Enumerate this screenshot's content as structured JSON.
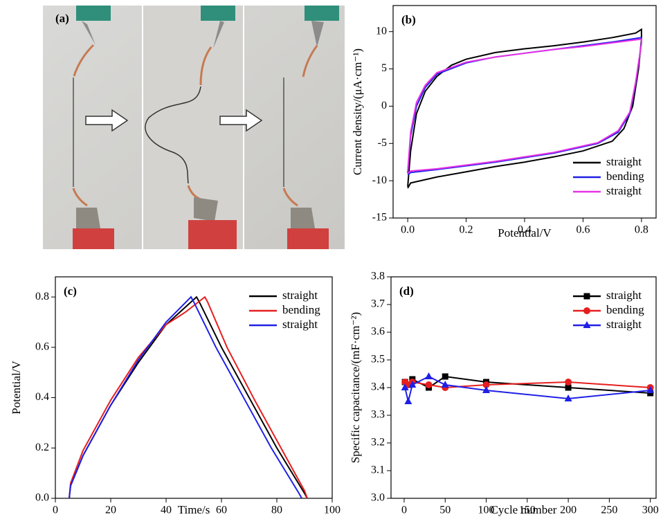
{
  "photo": {
    "label": "(a)"
  },
  "chart_data": [
    {
      "type": "line",
      "panel": "(b)",
      "xlabel": "Potential/V",
      "ylabel": "Current density/(μA·cm⁻¹)",
      "xlim": [
        -0.05,
        0.85
      ],
      "ylim": [
        -15,
        13.5
      ],
      "xticks": [
        {
          "value": 0,
          "label": "0.0"
        },
        0.2,
        0.4,
        0.6,
        0.8
      ],
      "yticks": [
        -15,
        -10,
        -5,
        0,
        5,
        10
      ],
      "legend": "lower right",
      "series": [
        {
          "name": "straight",
          "color": "#000000",
          "x": [
            0.0,
            0.01,
            0.03,
            0.06,
            0.1,
            0.15,
            0.2,
            0.3,
            0.4,
            0.5,
            0.6,
            0.7,
            0.78,
            0.8,
            0.8,
            0.79,
            0.77,
            0.74,
            0.7,
            0.6,
            0.5,
            0.4,
            0.3,
            0.2,
            0.1,
            0.01,
            0.0
          ],
          "values": [
            -10.8,
            -6,
            -1,
            2,
            4,
            5.5,
            6.3,
            7.2,
            7.7,
            8.1,
            8.6,
            9.2,
            9.8,
            10.3,
            9,
            5,
            0,
            -3,
            -4.7,
            -6,
            -6.8,
            -7.5,
            -8.1,
            -8.8,
            -9.5,
            -10.3,
            -11
          ]
        },
        {
          "name": "bending",
          "color": "#1f1fe6",
          "x": [
            0.0,
            0.01,
            0.03,
            0.06,
            0.1,
            0.2,
            0.3,
            0.4,
            0.5,
            0.6,
            0.7,
            0.8,
            0.8,
            0.78,
            0.76,
            0.72,
            0.65,
            0.5,
            0.4,
            0.3,
            0.2,
            0.1,
            0.01,
            0.0
          ],
          "values": [
            -9,
            -4,
            0,
            2.5,
            4.3,
            5.8,
            6.6,
            7.1,
            7.6,
            8.1,
            8.6,
            9.2,
            8.5,
            3,
            -1,
            -3.5,
            -5,
            -6.3,
            -6.9,
            -7.5,
            -8,
            -8.5,
            -8.9,
            -9.2
          ]
        },
        {
          "name": "straight",
          "color": "#e632e6",
          "x": [
            0.0,
            0.01,
            0.03,
            0.06,
            0.1,
            0.2,
            0.3,
            0.4,
            0.5,
            0.6,
            0.7,
            0.8,
            0.8,
            0.78,
            0.76,
            0.72,
            0.65,
            0.5,
            0.4,
            0.3,
            0.2,
            0.1,
            0.01,
            0.0
          ],
          "values": [
            -8.8,
            -3.5,
            0.5,
            2.8,
            4.5,
            5.9,
            6.6,
            7.1,
            7.6,
            8.0,
            8.5,
            9.0,
            8.4,
            3.2,
            -0.8,
            -3.3,
            -4.9,
            -6.2,
            -6.8,
            -7.4,
            -7.9,
            -8.4,
            -8.7,
            -9.0
          ]
        }
      ]
    },
    {
      "type": "line",
      "panel": "(c)",
      "xlabel": "Time/s",
      "ylabel": "Potential/V",
      "xlim": [
        0,
        100
      ],
      "ylim": [
        0,
        0.88
      ],
      "xticks": [
        0,
        20,
        40,
        60,
        80,
        100
      ],
      "yticks": [
        {
          "value": 0,
          "label": "0.0"
        },
        0.2,
        0.4,
        0.6,
        0.8
      ],
      "legend": "upper right",
      "series": [
        {
          "name": "straight",
          "color": "#000000",
          "x": [
            5,
            5.5,
            10,
            20,
            30,
            40,
            48,
            51,
            52,
            60,
            70,
            80,
            90,
            91
          ],
          "values": [
            0,
            0.05,
            0.17,
            0.37,
            0.54,
            0.69,
            0.77,
            0.8,
            0.78,
            0.6,
            0.4,
            0.2,
            0.02,
            0
          ]
        },
        {
          "name": "bending",
          "color": "#e61e1e",
          "x": [
            5,
            5.5,
            10,
            20,
            30,
            40,
            47,
            54,
            55,
            62,
            72,
            82,
            90,
            91
          ],
          "values": [
            0,
            0.06,
            0.19,
            0.39,
            0.56,
            0.69,
            0.74,
            0.8,
            0.78,
            0.6,
            0.39,
            0.19,
            0.03,
            0
          ]
        },
        {
          "name": "straight",
          "color": "#1f1fe6",
          "x": [
            5,
            5.5,
            10,
            20,
            30,
            40,
            49,
            50,
            58,
            68,
            78,
            88,
            89
          ],
          "values": [
            0,
            0.05,
            0.17,
            0.37,
            0.55,
            0.7,
            0.8,
            0.78,
            0.6,
            0.4,
            0.2,
            0.02,
            0
          ]
        }
      ]
    },
    {
      "type": "line",
      "panel": "(d)",
      "xlabel": "Cycle number",
      "ylabel": "Specific capacitance/(mF·cm⁻²)",
      "xlim": [
        -16,
        307
      ],
      "ylim": [
        3.0,
        3.8
      ],
      "xticks": [
        0,
        50,
        100,
        150,
        200,
        250,
        300
      ],
      "yticks": [
        {
          "value": 3,
          "label": "3.0"
        },
        3.1,
        3.2,
        3.3,
        3.4,
        3.5,
        3.6,
        3.7,
        3.8
      ],
      "legend": "upper right",
      "series": [
        {
          "name": "straight",
          "color": "#000000",
          "marker": "square",
          "x": [
            1,
            5,
            10,
            30,
            50,
            100,
            200,
            300
          ],
          "values": [
            3.42,
            3.41,
            3.43,
            3.4,
            3.44,
            3.42,
            3.4,
            3.38
          ]
        },
        {
          "name": "bending",
          "color": "#e61e1e",
          "marker": "circle",
          "x": [
            1,
            5,
            10,
            30,
            50,
            100,
            200,
            300
          ],
          "values": [
            3.42,
            3.41,
            3.42,
            3.41,
            3.4,
            3.41,
            3.42,
            3.4
          ]
        },
        {
          "name": "straight",
          "color": "#1f1fe6",
          "marker": "triangle",
          "x": [
            1,
            5,
            10,
            30,
            50,
            100,
            200,
            300
          ],
          "values": [
            3.4,
            3.35,
            3.41,
            3.44,
            3.41,
            3.39,
            3.36,
            3.39
          ]
        }
      ]
    }
  ]
}
